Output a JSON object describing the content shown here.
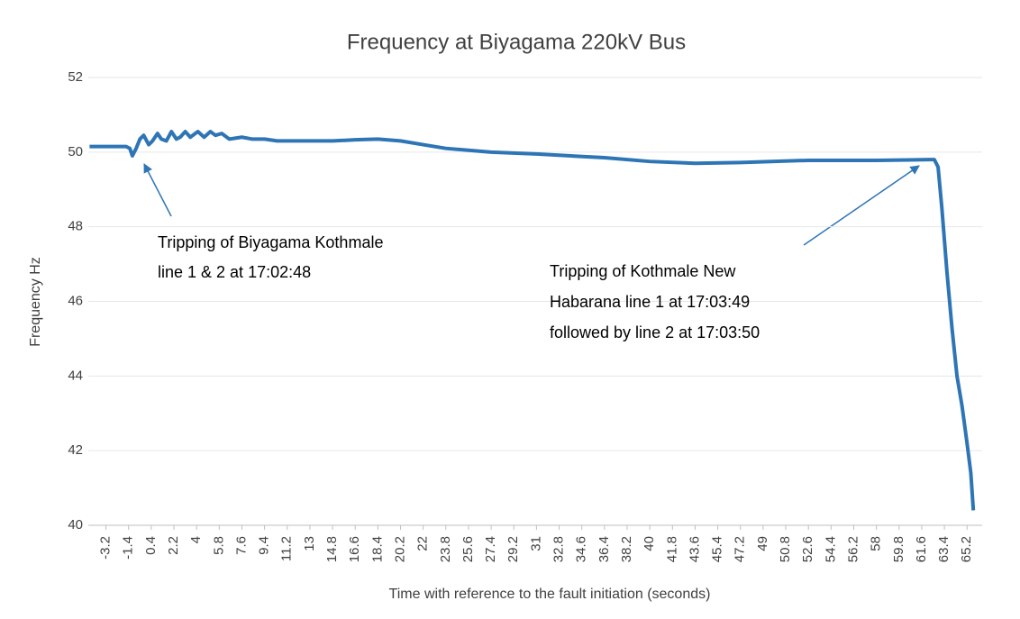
{
  "chart_data": {
    "type": "line",
    "title": "Frequency at Biyagama 220kV Bus",
    "x_label": "Time with reference to the fault initiation (seconds)",
    "y_label": "Frequency Hz",
    "series": [
      {
        "name": "Frequency",
        "color": "#2e75b6",
        "x": [
          -4.5,
          -1.6,
          -1.3,
          -1.1,
          -0.8,
          -0.5,
          -0.2,
          0.2,
          0.5,
          0.9,
          1.2,
          1.6,
          2.0,
          2.4,
          2.7,
          3.1,
          3.5,
          4.1,
          4.6,
          5.1,
          5.5,
          6.0,
          6.6,
          7.6,
          8.4,
          9.4,
          10.4,
          11.2,
          13,
          14.8,
          16.6,
          18.4,
          20.2,
          22,
          23.8,
          27.4,
          31,
          36.4,
          40,
          43.6,
          47.2,
          52.6,
          58,
          62.2,
          62.6,
          62.9,
          63.2,
          63.6,
          64,
          64.4,
          64.8,
          65.2,
          65.5,
          65.7
        ],
        "values": [
          50.15,
          50.15,
          50.1,
          49.9,
          50.1,
          50.35,
          50.45,
          50.2,
          50.3,
          50.5,
          50.35,
          50.3,
          50.55,
          50.35,
          50.4,
          50.55,
          50.4,
          50.55,
          50.4,
          50.55,
          50.45,
          50.5,
          50.35,
          50.4,
          50.35,
          50.35,
          50.3,
          50.3,
          50.3,
          50.3,
          50.33,
          50.35,
          50.3,
          50.2,
          50.1,
          50.0,
          49.95,
          49.85,
          49.75,
          49.7,
          49.72,
          49.78,
          49.78,
          49.8,
          49.8,
          49.6,
          48.5,
          46.8,
          45.3,
          44.0,
          43.2,
          42.2,
          41.4,
          40.4
        ]
      }
    ],
    "xlim": [
      -4.6,
      66.4
    ],
    "xticks": [
      -3.2,
      -1.4,
      0.4,
      2.2,
      4,
      5.8,
      7.6,
      9.4,
      11.2,
      13,
      14.8,
      16.6,
      18.4,
      20.2,
      22,
      23.8,
      25.6,
      27.4,
      29.2,
      31,
      32.8,
      34.6,
      36.4,
      38.2,
      40,
      41.8,
      43.6,
      45.4,
      47.2,
      49,
      50.8,
      52.6,
      54.4,
      56.2,
      58,
      59.8,
      61.6,
      63.4,
      65.2
    ],
    "ylim": [
      40,
      52
    ],
    "yticks": [
      40,
      42,
      44,
      46,
      48,
      50,
      52
    ],
    "grid": true,
    "annotations": [
      {
        "lines": [
          "Tripping of Biyagama Kothmale",
          "line 1 & 2 at 17:02:48"
        ]
      },
      {
        "lines": [
          "Tripping of Kothmale New",
          "Habarana line 1 at 17:03:49",
          "followed by line 2 at 17:03:50"
        ]
      }
    ]
  }
}
